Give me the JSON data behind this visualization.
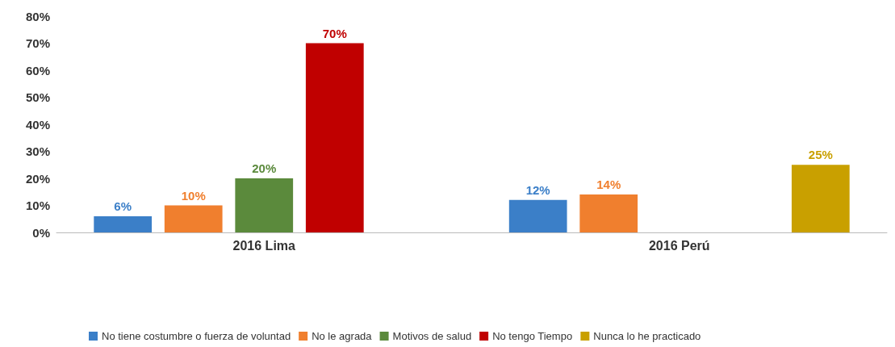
{
  "chart_data": {
    "type": "bar",
    "categories": [
      "2016 Lima",
      "2016 Perú"
    ],
    "series": [
      {
        "name": "No tiene costumbre o fuerza de voluntad",
        "color": "#3b7fc8",
        "values": [
          6,
          12
        ],
        "value_labels": [
          "6%",
          "12%"
        ]
      },
      {
        "name": "No le agrada",
        "color": "#f07f2e",
        "values": [
          10,
          14
        ],
        "value_labels": [
          "10%",
          "14%"
        ]
      },
      {
        "name": "Motivos de salud",
        "color": "#5b8a3c",
        "values": [
          20,
          null
        ],
        "value_labels": [
          "20%",
          null
        ]
      },
      {
        "name": "No tengo Tiempo",
        "color": "#c00000",
        "values": [
          70,
          null
        ],
        "value_labels": [
          "70%",
          null
        ]
      },
      {
        "name": "Nunca lo he practicado",
        "color": "#c9a000",
        "values": [
          null,
          25
        ],
        "value_labels": [
          null,
          "25%"
        ]
      }
    ],
    "ylim": [
      0,
      80
    ],
    "yticks": [
      {
        "value": 0,
        "label": "0%"
      },
      {
        "value": 10,
        "label": "10%"
      },
      {
        "value": 20,
        "label": "20%"
      },
      {
        "value": 30,
        "label": "30%"
      },
      {
        "value": 40,
        "label": "40%"
      },
      {
        "value": 50,
        "label": "50%"
      },
      {
        "value": 60,
        "label": "60%"
      },
      {
        "value": 70,
        "label": "70%"
      },
      {
        "value": 80,
        "label": "80%"
      }
    ],
    "grid": false,
    "legend": "bottom"
  }
}
